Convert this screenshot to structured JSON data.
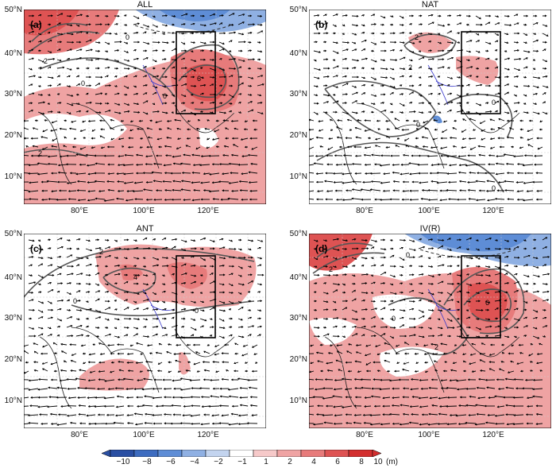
{
  "panels": [
    {
      "id": "a",
      "title": "ALL",
      "label": "(a)"
    },
    {
      "id": "b",
      "title": "NAT",
      "label": "(b)"
    },
    {
      "id": "c",
      "title": "ANT",
      "label": "(c)"
    },
    {
      "id": "d",
      "title": "IV(R)",
      "label": "(d)"
    }
  ],
  "lat_ticks": [
    "50°N",
    "40°N",
    "30°N",
    "20°N",
    "10°N"
  ],
  "lon_ticks": [
    "80°E",
    "100°E",
    "120°E"
  ],
  "colorbar": {
    "labels": [
      "−10",
      "−8",
      "−6",
      "−4",
      "−2",
      "−1",
      "1",
      "2",
      "4",
      "6",
      "8",
      "10"
    ],
    "unit": "(m)",
    "colors": [
      "#2a4fa3",
      "#3d6cc0",
      "#5e8dd6",
      "#8fb0e3",
      "#c3d4ef",
      "#ffffff",
      "#f6c9c9",
      "#efa3a3",
      "#e77b7b",
      "#de5353",
      "#d32f2f"
    ]
  },
  "contour_labels": {
    "a": [
      "0",
      "2",
      "6",
      "0",
      "2",
      "0"
    ],
    "b": [
      "2",
      "2",
      "0",
      "0",
      "0"
    ],
    "c": [
      "2",
      "4",
      "0",
      "0"
    ],
    "d": [
      "0",
      "2",
      "6",
      "2",
      "0"
    ]
  }
}
